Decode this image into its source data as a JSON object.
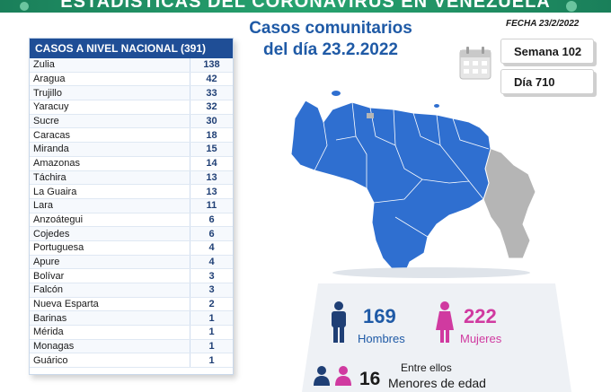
{
  "banner": {
    "title": "ESTADÍSTICAS DEL CORONAVIRUS EN VENEZUELA"
  },
  "title": {
    "line1": "Casos comunitarios",
    "line2": "del día 23.2.2022"
  },
  "fecha": "FECHA 23/2/2022",
  "semana": "Semana 102",
  "dia": "Día 710",
  "table": {
    "header_label": "CASOS A NIVEL NACIONAL",
    "header_total": "(391)",
    "rows": [
      {
        "state": "Zulia",
        "count": "138"
      },
      {
        "state": "Aragua",
        "count": "42"
      },
      {
        "state": "Trujillo",
        "count": "33"
      },
      {
        "state": "Yaracuy",
        "count": "32"
      },
      {
        "state": "Sucre",
        "count": "30"
      },
      {
        "state": "Caracas",
        "count": "18"
      },
      {
        "state": "Miranda",
        "count": "15"
      },
      {
        "state": "Amazonas",
        "count": "14"
      },
      {
        "state": "Táchira",
        "count": "13"
      },
      {
        "state": "La Guaira",
        "count": "13"
      },
      {
        "state": "Lara",
        "count": "11"
      },
      {
        "state": "Anzoátegui",
        "count": "6"
      },
      {
        "state": "Cojedes",
        "count": "6"
      },
      {
        "state": "Portuguesa",
        "count": "4"
      },
      {
        "state": "Apure",
        "count": "4"
      },
      {
        "state": "Bolívar",
        "count": "3"
      },
      {
        "state": "Falcón",
        "count": "3"
      },
      {
        "state": "Nueva Esparta",
        "count": "2"
      },
      {
        "state": "Barinas",
        "count": "1"
      },
      {
        "state": "Mérida",
        "count": "1"
      },
      {
        "state": "Monagas",
        "count": "1"
      },
      {
        "state": "Guárico",
        "count": "1"
      }
    ]
  },
  "stats": {
    "hombres_num": "169",
    "hombres_lbl": "Hombres",
    "mujeres_num": "222",
    "mujeres_lbl": "Mujeres",
    "entre": "Entre ellos",
    "menores_num": "16",
    "menores_lbl": "Menores de edad"
  },
  "colors": {
    "brand_blue": "#1f5aa6",
    "map_blue": "#2f6fd0",
    "map_gray": "#b5b5b5",
    "mujeres_pink": "#d03aa0",
    "banner_green": "#1a7f5a"
  }
}
